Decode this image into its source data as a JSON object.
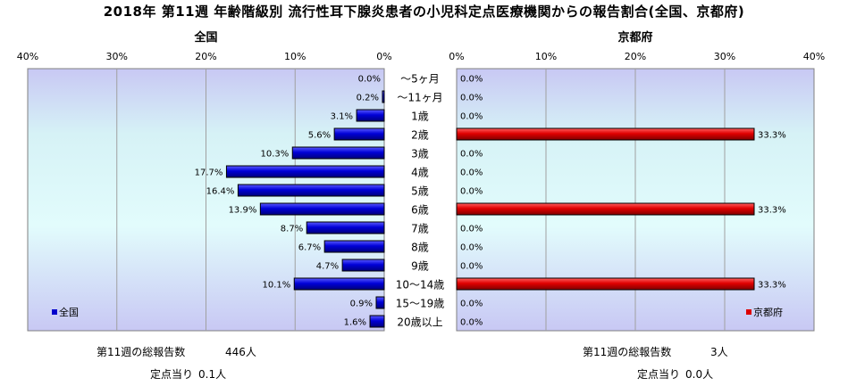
{
  "title": "2018年 第11週 年齢階級別 流行性耳下腺炎患者の小児科定点医療機関からの報告割合(全国、京都府)",
  "chart_data": [
    {
      "type": "bar",
      "orientation": "horizontal",
      "direction": "right-to-left",
      "title": "全国",
      "categories": [
        "～5ヶ月",
        "～11ヶ月",
        "1歳",
        "2歳",
        "3歳",
        "4歳",
        "5歳",
        "6歳",
        "7歳",
        "8歳",
        "9歳",
        "10～14歳",
        "15～19歳",
        "20歳以上"
      ],
      "series": [
        {
          "name": "全国",
          "color": "#0000cc",
          "values": [
            0.0,
            0.2,
            3.1,
            5.6,
            10.3,
            17.7,
            16.4,
            13.9,
            8.7,
            6.7,
            4.7,
            10.1,
            0.9,
            1.6
          ],
          "labels": [
            "0.0%",
            "0.2%",
            "3.1%",
            "5.6%",
            "10.3%",
            "17.7%",
            "16.4%",
            "13.9%",
            "8.7%",
            "6.7%",
            "4.7%",
            "10.1%",
            "0.9%",
            "1.6%"
          ]
        }
      ],
      "xlim": [
        0,
        40
      ],
      "ticks": [
        "40%",
        "30%",
        "20%",
        "10%",
        "0%"
      ],
      "legend_position": "bottom-left",
      "grid": true
    },
    {
      "type": "bar",
      "orientation": "horizontal",
      "direction": "left-to-right",
      "title": "京都府",
      "categories": [
        "～5ヶ月",
        "～11ヶ月",
        "1歳",
        "2歳",
        "3歳",
        "4歳",
        "5歳",
        "6歳",
        "7歳",
        "8歳",
        "9歳",
        "10～14歳",
        "15～19歳",
        "20歳以上"
      ],
      "series": [
        {
          "name": "京都府",
          "color": "#dd0000",
          "values": [
            0.0,
            0.0,
            0.0,
            33.3,
            0.0,
            0.0,
            0.0,
            33.3,
            0.0,
            0.0,
            0.0,
            33.3,
            0.0,
            0.0
          ],
          "labels": [
            "0.0%",
            "0.0%",
            "0.0%",
            "33.3%",
            "0.0%",
            "0.0%",
            "0.0%",
            "33.3%",
            "0.0%",
            "0.0%",
            "0.0%",
            "33.3%",
            "0.0%",
            "0.0%"
          ]
        }
      ],
      "xlim": [
        0,
        40
      ],
      "ticks": [
        "0%",
        "10%",
        "20%",
        "30%",
        "40%"
      ],
      "legend_position": "bottom-right",
      "grid": true
    }
  ],
  "footer": {
    "national_total_label": "第11週の総報告数",
    "national_total_value": "446人",
    "national_per_label": "定点当り",
    "national_per_value": "0.1人",
    "kyoto_total_label": "第11週の総報告数",
    "kyoto_total_value": "3人",
    "kyoto_per_label": "定点当り",
    "kyoto_per_value": "0.0人"
  }
}
